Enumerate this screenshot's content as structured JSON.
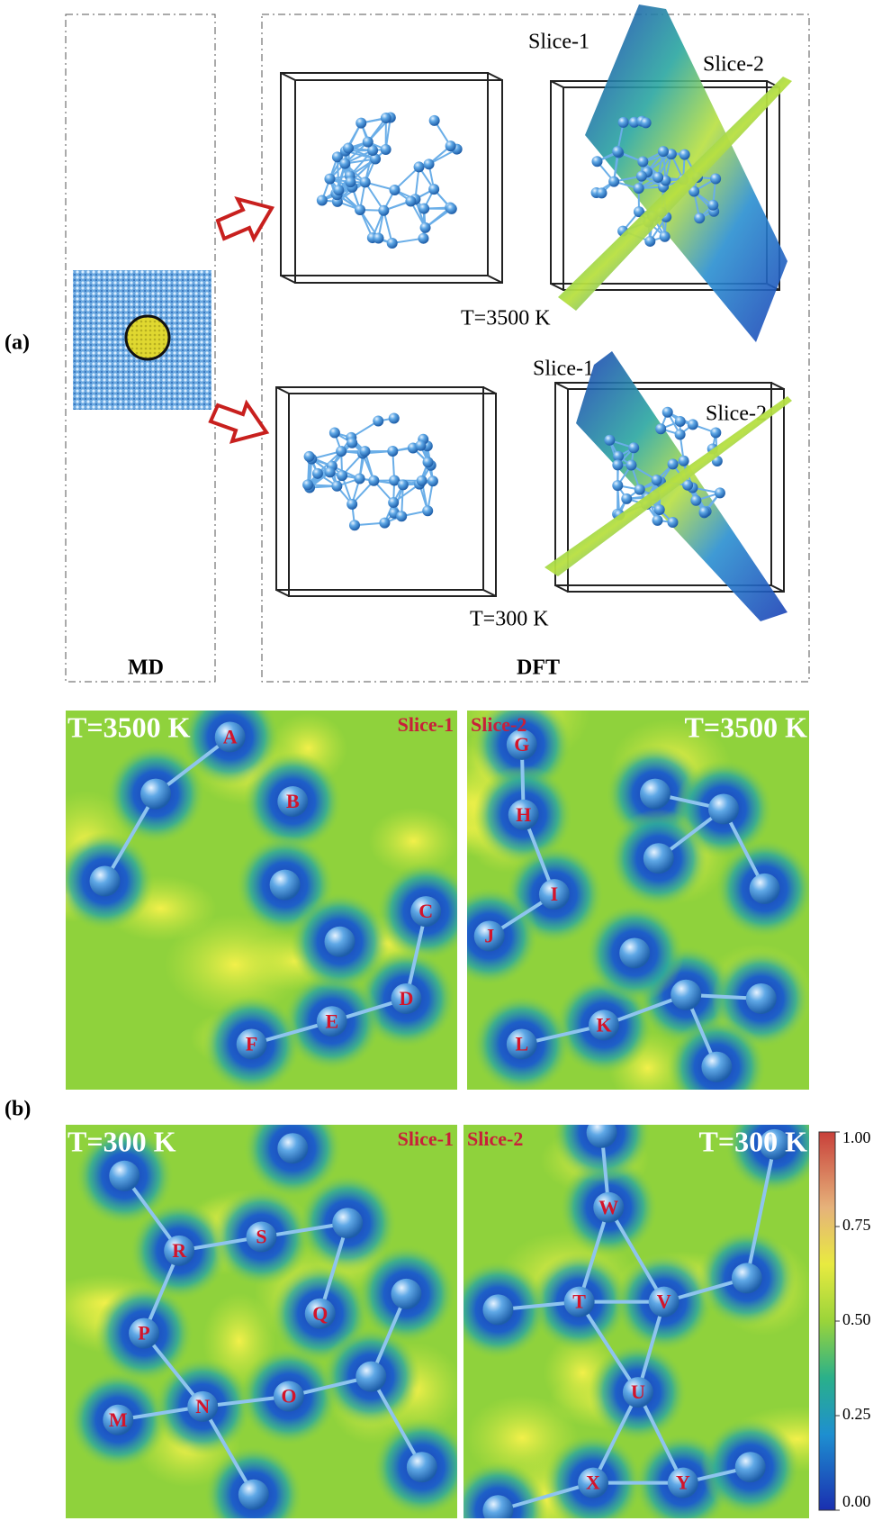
{
  "panel_a": {
    "label": "(a)",
    "md_label": "MD",
    "dft_label": "DFT",
    "rows": [
      {
        "slice_1": "Slice-1",
        "slice_2": "Slice-2",
        "temperature": "T=3500 K"
      },
      {
        "slice_1": "Slice-1",
        "slice_2": "Slice-2",
        "temperature": "T=300 K"
      }
    ]
  },
  "panel_b": {
    "label": "(b)",
    "maps": [
      {
        "temperature": "T=3500 K",
        "slice": "Slice-1",
        "atoms": [
          "A",
          "B",
          "C",
          "D",
          "E",
          "F"
        ]
      },
      {
        "temperature": "T=3500 K",
        "slice": "Slice-2",
        "atoms": [
          "G",
          "H",
          "I",
          "J",
          "K",
          "L"
        ]
      },
      {
        "temperature": "T=300 K",
        "slice": "Slice-1",
        "atoms": [
          "M",
          "N",
          "O",
          "P",
          "Q",
          "R",
          "S"
        ]
      },
      {
        "temperature": "T=300 K",
        "slice": "Slice-2",
        "atoms": [
          "T",
          "U",
          "V",
          "W",
          "X",
          "Y"
        ]
      }
    ],
    "colorbar": {
      "lim": [
        0,
        1
      ],
      "ticks": [
        {
          "value": 0,
          "label": "0.00"
        },
        {
          "value": 0.25,
          "label": "0.25"
        },
        {
          "value": 0.5,
          "label": "0.50"
        },
        {
          "value": 0.75,
          "label": "0.75"
        },
        {
          "value": 1,
          "label": "1.00"
        }
      ]
    }
  }
}
